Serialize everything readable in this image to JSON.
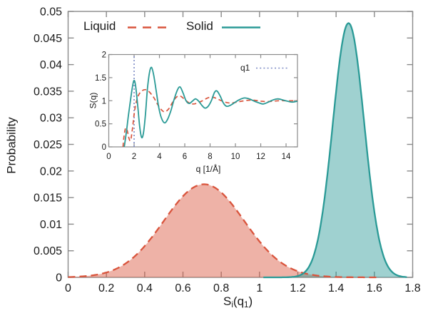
{
  "figure": {
    "background": "#ffffff",
    "text_color": "#1a1a1a",
    "frame_color": "#8a8a8a"
  },
  "legend": {
    "liquid_label": "Liquid",
    "solid_label": "Solid",
    "inset_marker_label": "q1"
  },
  "labels": {
    "main_ylabel": "Probability",
    "main_xlabel_parts": {
      "p1": "S",
      "p2": "i",
      "p3": "(q",
      "p4": "1",
      "p5": ")"
    },
    "inset_ylabel": "S(q)",
    "inset_xlabel": "q [1/Å]"
  },
  "chart_data": [
    {
      "id": "main-distributions",
      "type": "area",
      "title": "",
      "xlabel": "S_i(q_1)",
      "ylabel": "Probability",
      "xlim": [
        0,
        1.8
      ],
      "ylim": [
        0,
        0.05
      ],
      "x_ticks": [
        0,
        0.2,
        0.4,
        0.6,
        0.8,
        1.0,
        1.2,
        1.4,
        1.6,
        1.8
      ],
      "x_tick_labels": [
        "0",
        "0.2",
        "0.4",
        "0.6",
        "0.8",
        "1",
        "1.2",
        "1.4",
        "1.6",
        "1.8"
      ],
      "y_ticks": [
        0,
        0.005,
        0.01,
        0.015,
        0.02,
        0.025,
        0.03,
        0.035,
        0.04,
        0.045,
        0.05
      ],
      "y_tick_labels": [
        "0",
        "0.005",
        "0.01",
        "0.015",
        "0.02",
        "0.025",
        "0.03",
        "0.035",
        "0.04",
        "0.045",
        "0.05"
      ],
      "grid": false,
      "legend_position": "top-left",
      "series": [
        {
          "name": "Liquid",
          "shape": "gaussian",
          "mean": 0.71,
          "sigma": 0.21,
          "peak": 0.0175,
          "x_range": [
            0.0,
            1.62
          ],
          "line_color": "#d9543c",
          "fill_color": "rgba(217,84,60,0.45)",
          "line_style": "dashed"
        },
        {
          "name": "Solid",
          "shape": "gaussian",
          "mean": 1.465,
          "sigma": 0.082,
          "peak": 0.0478,
          "x_range": [
            1.02,
            1.77
          ],
          "line_color": "#2a9a96",
          "fill_color": "rgba(42,154,150,0.45)",
          "line_style": "solid"
        }
      ]
    },
    {
      "id": "inset-structure-factor",
      "type": "line",
      "title": "",
      "xlabel": "q [1/Å]",
      "ylabel": "S(q)",
      "xlim": [
        0,
        14.9
      ],
      "ylim": [
        0,
        2
      ],
      "x_ticks": [
        0,
        2,
        4,
        6,
        8,
        10,
        12,
        14
      ],
      "x_tick_labels": [
        "0",
        "2",
        "4",
        "6",
        "8",
        "10",
        "12",
        "14"
      ],
      "y_ticks": [
        0,
        0.5,
        1,
        1.5,
        2
      ],
      "y_tick_labels": [
        "0",
        "0.5",
        "1",
        "1.5",
        "2"
      ],
      "grid": false,
      "legend_position": "top-right",
      "marker": {
        "label": "q1",
        "x": 2.0,
        "color": "#7b89c4",
        "style": "dotted"
      },
      "series": [
        {
          "name": "Liquid",
          "line_color": "#d9543c",
          "line_style": "dashed",
          "points": [
            [
              1.12,
              0
            ],
            [
              1.2,
              0.22
            ],
            [
              1.32,
              0.4
            ],
            [
              1.45,
              0.36
            ],
            [
              1.6,
              0.18
            ],
            [
              1.72,
              0.14
            ],
            [
              1.85,
              0.35
            ],
            [
              2.0,
              0.7
            ],
            [
              2.15,
              0.95
            ],
            [
              2.35,
              1.12
            ],
            [
              2.6,
              1.21
            ],
            [
              2.9,
              1.24
            ],
            [
              3.2,
              1.19
            ],
            [
              3.55,
              1.07
            ],
            [
              3.9,
              0.9
            ],
            [
              4.2,
              0.79
            ],
            [
              4.45,
              0.76
            ],
            [
              4.75,
              0.83
            ],
            [
              5.05,
              0.97
            ],
            [
              5.35,
              1.08
            ],
            [
              5.65,
              1.1
            ],
            [
              5.95,
              1.04
            ],
            [
              6.3,
              0.96
            ],
            [
              6.65,
              0.93
            ],
            [
              7.0,
              0.95
            ],
            [
              7.4,
              1.0
            ],
            [
              7.8,
              1.06
            ],
            [
              8.15,
              1.08
            ],
            [
              8.5,
              1.05
            ],
            [
              8.9,
              1.0
            ],
            [
              9.3,
              0.96
            ],
            [
              9.7,
              0.95
            ],
            [
              10.1,
              0.97
            ],
            [
              10.5,
              0.99
            ],
            [
              11.0,
              1.01
            ],
            [
              11.5,
              1.01
            ],
            [
              12.0,
              0.99
            ],
            [
              12.5,
              0.98
            ],
            [
              13.0,
              0.99
            ],
            [
              13.5,
              1.0
            ],
            [
              14.0,
              1.0
            ],
            [
              14.5,
              1.0
            ],
            [
              14.9,
              1.0
            ]
          ]
        },
        {
          "name": "Solid",
          "line_color": "#2a9a96",
          "line_style": "solid",
          "points": [
            [
              1.22,
              0
            ],
            [
              1.38,
              0.3
            ],
            [
              1.55,
              0.68
            ],
            [
              1.72,
              1.02
            ],
            [
              1.88,
              1.32
            ],
            [
              2.0,
              1.44
            ],
            [
              2.12,
              1.32
            ],
            [
              2.28,
              0.9
            ],
            [
              2.45,
              0.42
            ],
            [
              2.6,
              0.2
            ],
            [
              2.75,
              0.32
            ],
            [
              2.9,
              0.72
            ],
            [
              3.05,
              1.25
            ],
            [
              3.22,
              1.62
            ],
            [
              3.38,
              1.72
            ],
            [
              3.55,
              1.55
            ],
            [
              3.75,
              1.2
            ],
            [
              3.95,
              0.85
            ],
            [
              4.15,
              0.63
            ],
            [
              4.4,
              0.52
            ],
            [
              4.65,
              0.6
            ],
            [
              4.9,
              0.78
            ],
            [
              5.15,
              1.02
            ],
            [
              5.4,
              1.22
            ],
            [
              5.62,
              1.3
            ],
            [
              5.85,
              1.18
            ],
            [
              6.1,
              1.0
            ],
            [
              6.35,
              0.94
            ],
            [
              6.6,
              0.99
            ],
            [
              6.85,
              1.04
            ],
            [
              7.1,
              0.99
            ],
            [
              7.35,
              0.9
            ],
            [
              7.6,
              0.84
            ],
            [
              7.85,
              0.88
            ],
            [
              8.1,
              1.0
            ],
            [
              8.35,
              1.18
            ],
            [
              8.55,
              1.21
            ],
            [
              8.8,
              1.1
            ],
            [
              9.05,
              0.95
            ],
            [
              9.3,
              0.88
            ],
            [
              9.6,
              0.9
            ],
            [
              9.95,
              0.96
            ],
            [
              10.3,
              1.02
            ],
            [
              10.7,
              1.06
            ],
            [
              11.1,
              1.04
            ],
            [
              11.5,
              0.99
            ],
            [
              11.9,
              0.95
            ],
            [
              12.2,
              0.93
            ],
            [
              12.6,
              0.97
            ],
            [
              13.0,
              1.02
            ],
            [
              13.35,
              1.04
            ],
            [
              13.7,
              1.02
            ],
            [
              14.1,
              0.99
            ],
            [
              14.5,
              0.97
            ],
            [
              14.9,
              0.99
            ]
          ]
        }
      ]
    }
  ]
}
